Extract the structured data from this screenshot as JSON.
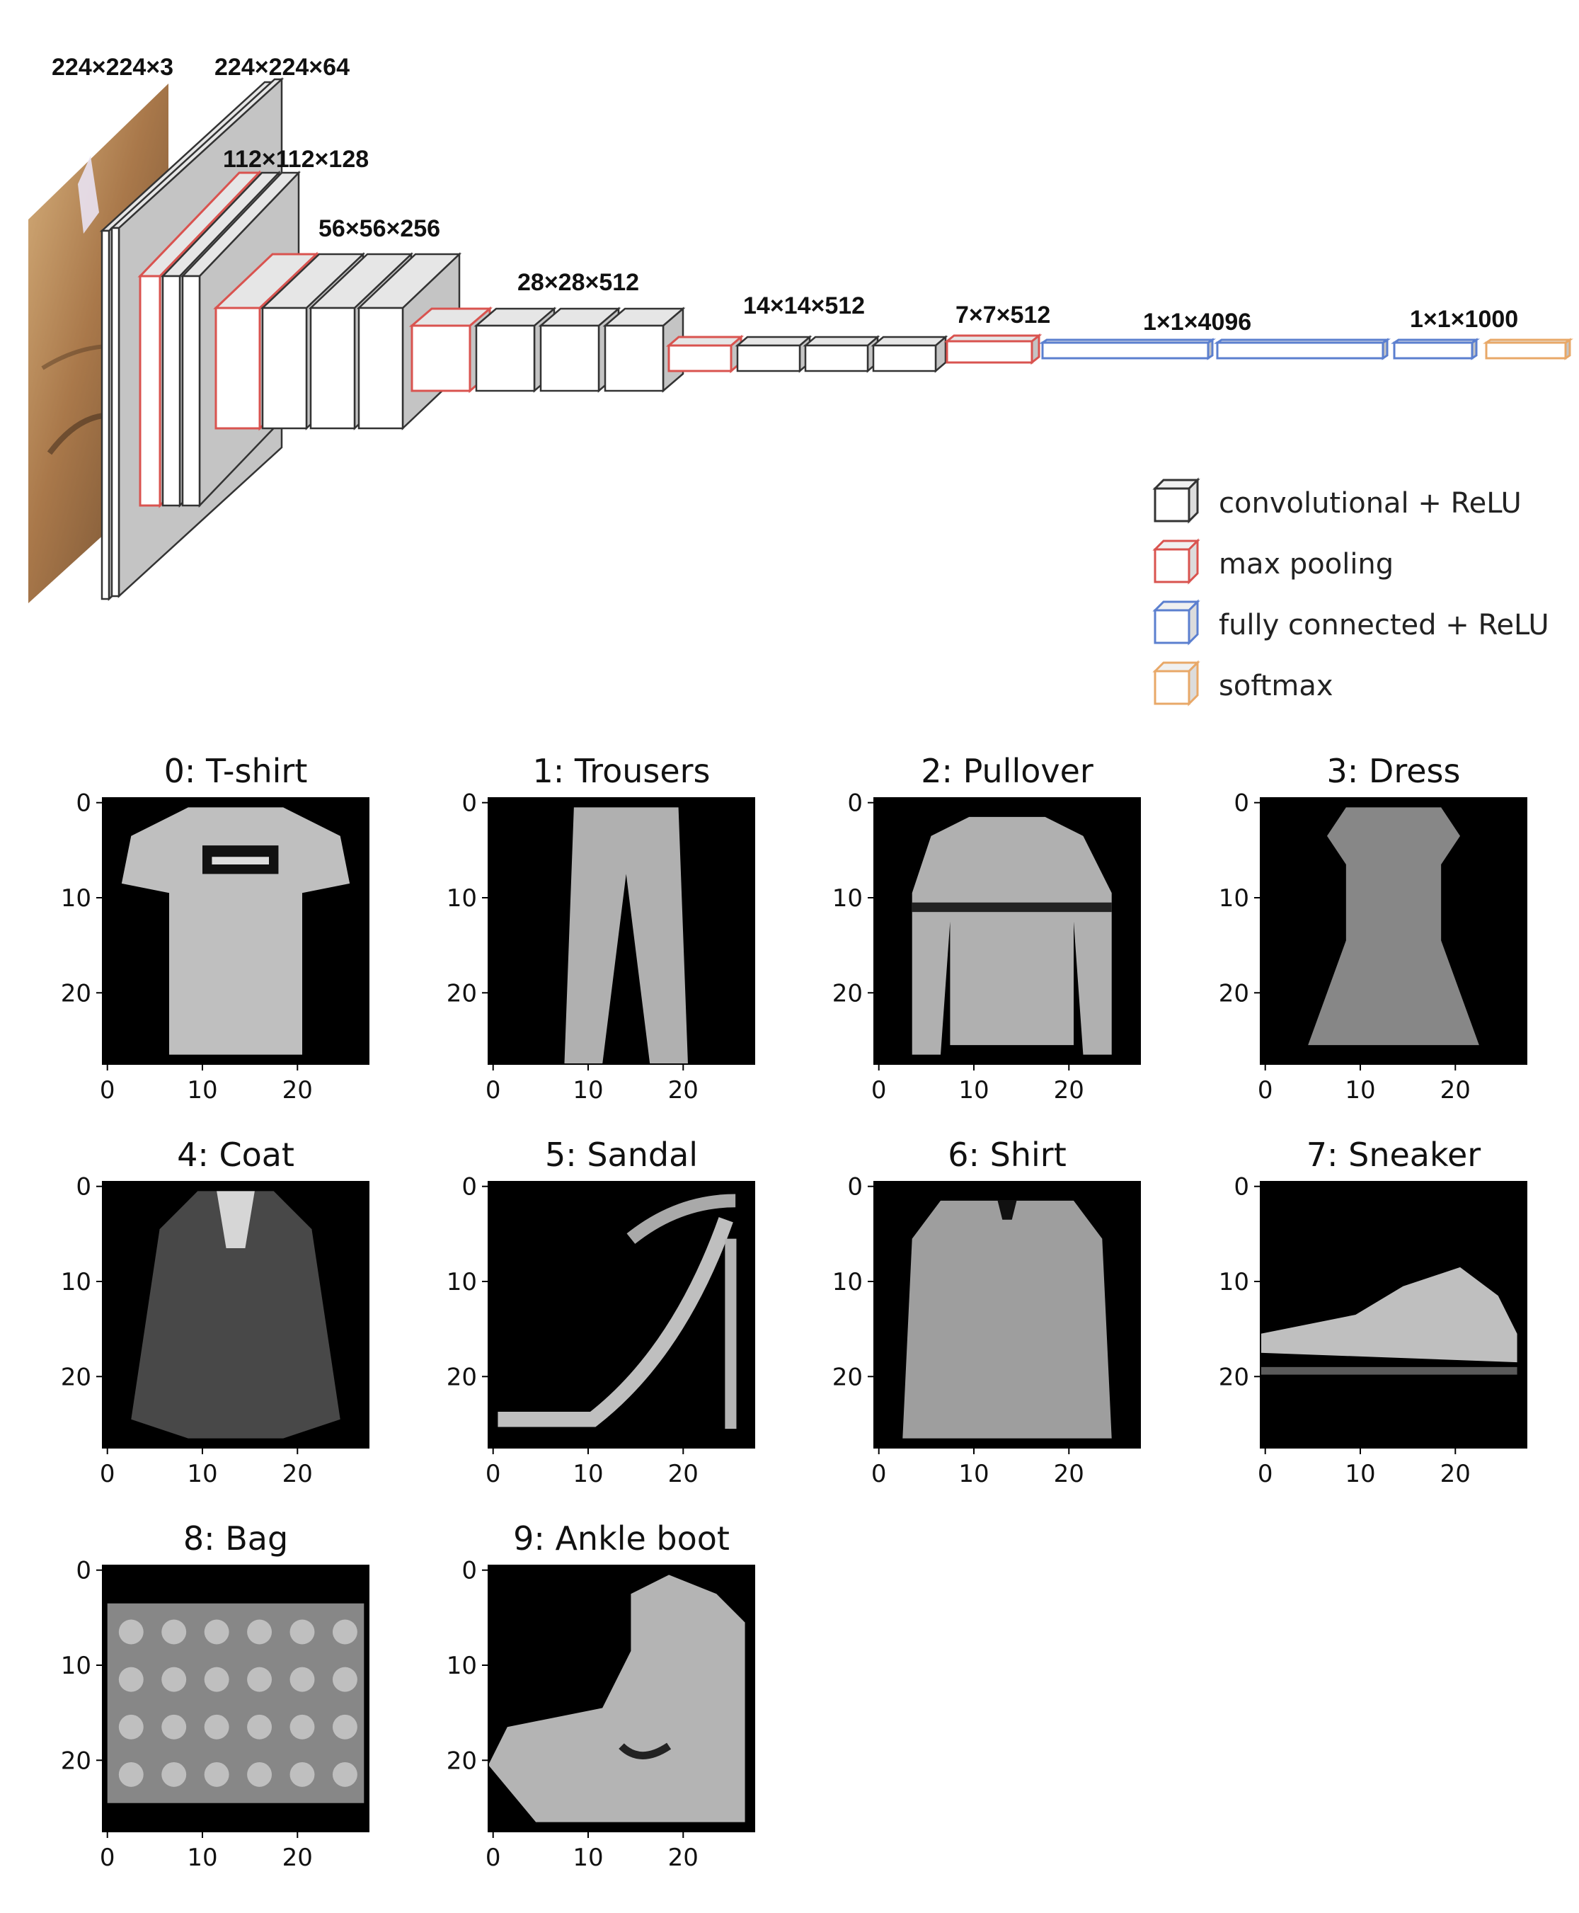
{
  "architecture": {
    "labels": [
      "224×224×3",
      "224×224×64",
      "112×112×128",
      "56×56×256",
      "28×28×512",
      "14×14×512",
      "7×7×512",
      "1×1×4096",
      "1×1×1000"
    ],
    "legend": [
      {
        "label": "convolutional + ReLU",
        "color": "#333333",
        "icon": "conv-cube-icon"
      },
      {
        "label": "max pooling",
        "color": "#d9534f",
        "icon": "pool-cube-icon"
      },
      {
        "label": "fully connected + ReLU",
        "color": "#5b7fcf",
        "icon": "fc-cube-icon"
      },
      {
        "label": "softmax",
        "color": "#e8a868",
        "icon": "softmax-cube-icon"
      }
    ]
  },
  "samples": {
    "tick_labels": [
      "0",
      "10",
      "20"
    ],
    "items": [
      {
        "title": "0: T-shirt"
      },
      {
        "title": "1: Trousers"
      },
      {
        "title": "2: Pullover"
      },
      {
        "title": "3: Dress"
      },
      {
        "title": "4: Coat"
      },
      {
        "title": "5: Sandal"
      },
      {
        "title": "6: Shirt"
      },
      {
        "title": "7: Sneaker"
      },
      {
        "title": "8: Bag"
      },
      {
        "title": "9: Ankle boot"
      }
    ]
  }
}
